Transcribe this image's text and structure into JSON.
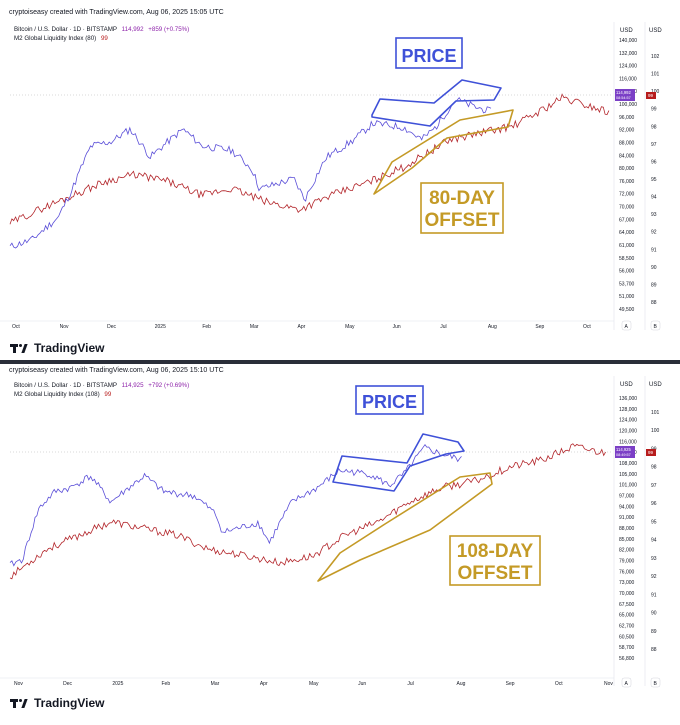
{
  "panels": [
    {
      "header": "cryptoiseasy created with TradingView.com, Aug 06, 2025 15:05 UTC",
      "legend_price": "Bitcoin / U.S. Dollar · 1D · BITSTAMP",
      "legend_price_value": "114,992",
      "legend_price_change": "+859 (+0.75%)",
      "legend_m2": "M2 Global Liquidity Index (80)",
      "legend_m2_value": "99",
      "annotation_price": "PRICE",
      "annotation_offset_1": "80-DAY",
      "annotation_offset_2": "OFFSET",
      "logo": "TradingView"
    },
    {
      "header": "cryptoiseasy created with TradingView.com, Aug 06, 2025 15:10 UTC",
      "legend_price": "Bitcoin / U.S. Dollar · 1D · BITSTAMP",
      "legend_price_value": "114,925",
      "legend_price_change": "+792 (+0.69%)",
      "legend_m2": "M2 Global Liquidity Index (108)",
      "legend_m2_value": "99",
      "annotation_price": "PRICE",
      "annotation_offset_1": "108-DAY",
      "annotation_offset_2": "OFFSET",
      "logo": "TradingView"
    }
  ],
  "colors": {
    "price_line": "#5b4fd8",
    "m2_line": "#b3262b",
    "price_box": "#3f51d8",
    "offset_box": "#c49a26"
  },
  "chart_data": [
    {
      "type": "line",
      "title": "Bitcoin / U.S. Dollar · 1D · BITSTAMP vs M2 Global Liquidity Index (80)",
      "x_ticks": [
        "Oct",
        "Nov",
        "Dec",
        "2025",
        "Feb",
        "Mar",
        "Apr",
        "May",
        "Jun",
        "Jul",
        "Aug",
        "Sep",
        "Oct"
      ],
      "left_axis_label": "USD",
      "right_axis_label": "USD",
      "left_axis_ticks": [
        "140,000",
        "132,000",
        "124,000",
        "116,000",
        "108,000",
        "100,000",
        "96,000",
        "92,000",
        "88,000",
        "84,000",
        "80,000",
        "76,000",
        "72,000",
        "70,000",
        "67,000",
        "64,000",
        "61,000",
        "58,500",
        "56,000",
        "53,700",
        "51,000",
        "49,500"
      ],
      "right_axis_ticks": [
        "102",
        "101",
        "100",
        "99",
        "98",
        "97",
        "96",
        "95",
        "94",
        "93",
        "92",
        "91",
        "90",
        "89",
        "88"
      ],
      "price_label": "114,992",
      "price_countdown": "08:54:57",
      "m2_label": "99",
      "series": [
        {
          "name": "Bitcoin / U.S. Dollar",
          "x": [
            "2024-10-01",
            "2024-10-15",
            "2024-11-01",
            "2024-11-10",
            "2024-11-22",
            "2024-12-05",
            "2024-12-17",
            "2024-12-30",
            "2025-01-20",
            "2025-02-01",
            "2025-02-20",
            "2025-03-05",
            "2025-03-10",
            "2025-04-01",
            "2025-04-08",
            "2025-04-22",
            "2025-05-08",
            "2025-05-22",
            "2025-06-10",
            "2025-06-22",
            "2025-07-01",
            "2025-07-14",
            "2025-07-25",
            "2025-08-06"
          ],
          "values": [
            61000,
            63000,
            70000,
            80000,
            98000,
            100000,
            106000,
            93000,
            106000,
            98000,
            96000,
            88000,
            80000,
            84000,
            76000,
            93000,
            100000,
            109000,
            107000,
            101000,
            107000,
            122000,
            118000,
            114992
          ]
        },
        {
          "name": "M2 Global Liquidity Index (80)",
          "x": [
            "2024-10-01",
            "2024-10-20",
            "2024-11-10",
            "2024-12-01",
            "2024-12-20",
            "2025-01-10",
            "2025-02-01",
            "2025-02-20",
            "2025-03-15",
            "2025-04-05",
            "2025-04-25",
            "2025-05-20",
            "2025-06-10",
            "2025-06-25",
            "2025-07-10",
            "2025-07-30",
            "2025-08-20",
            "2025-09-05",
            "2025-09-20",
            "2025-10-05",
            "2025-10-20"
          ],
          "values": [
            91,
            92,
            93,
            94,
            94.5,
            94,
            93,
            93.5,
            92.5,
            92,
            93,
            94,
            95,
            96,
            97,
            97.5,
            98,
            99,
            100,
            99.5,
            99
          ]
        }
      ]
    },
    {
      "type": "line",
      "title": "Bitcoin / U.S. Dollar · 1D · BITSTAMP vs M2 Global Liquidity Index (108)",
      "x_ticks": [
        "Nov",
        "Dec",
        "2025",
        "Feb",
        "Mar",
        "Apr",
        "May",
        "Jun",
        "Jul",
        "Aug",
        "Sep",
        "Oct",
        "Nov"
      ],
      "left_axis_label": "USD",
      "right_axis_label": "USD",
      "left_axis_ticks": [
        "136,000",
        "128,000",
        "124,000",
        "120,000",
        "116,000",
        "112,000",
        "108,000",
        "105,000",
        "101,000",
        "97,000",
        "94,000",
        "91,000",
        "88,000",
        "85,000",
        "82,000",
        "79,000",
        "76,000",
        "73,000",
        "70,000",
        "67,500",
        "65,000",
        "62,700",
        "60,500",
        "58,700",
        "56,800"
      ],
      "right_axis_ticks": [
        "101",
        "100",
        "99",
        "98",
        "97",
        "96",
        "95",
        "94",
        "93",
        "92",
        "91",
        "90",
        "89",
        "88"
      ],
      "price_label": "114,925",
      "price_countdown": "08:49:57",
      "m2_label": "99",
      "series": [
        {
          "name": "Bitcoin / U.S. Dollar",
          "x": [
            "2024-10-28",
            "2024-11-05",
            "2024-11-15",
            "2024-11-25",
            "2024-12-05",
            "2024-12-17",
            "2024-12-30",
            "2025-01-20",
            "2025-02-01",
            "2025-02-20",
            "2025-03-05",
            "2025-03-10",
            "2025-04-01",
            "2025-04-08",
            "2025-04-22",
            "2025-05-08",
            "2025-05-22",
            "2025-06-10",
            "2025-06-22",
            "2025-07-01",
            "2025-07-14",
            "2025-07-25",
            "2025-08-06"
          ],
          "values": [
            68000,
            70000,
            90000,
            98000,
            100000,
            106000,
            93000,
            106000,
            98000,
            96000,
            88000,
            80000,
            84000,
            76000,
            93000,
            100000,
            109000,
            107000,
            101000,
            107000,
            122000,
            118000,
            114925
          ]
        },
        {
          "name": "M2 Global Liquidity Index (108)",
          "x": [
            "2024-10-28",
            "2024-11-20",
            "2024-12-10",
            "2024-12-30",
            "2025-01-20",
            "2025-02-10",
            "2025-03-01",
            "2025-03-25",
            "2025-04-15",
            "2025-05-05",
            "2025-05-25",
            "2025-06-15",
            "2025-07-05",
            "2025-07-25",
            "2025-08-15",
            "2025-09-05",
            "2025-09-25",
            "2025-10-15",
            "2025-11-05"
          ],
          "values": [
            90,
            92,
            93,
            94,
            93.5,
            93,
            92,
            91.5,
            91,
            91.5,
            93,
            94,
            95.5,
            96.5,
            97,
            98,
            98.5,
            99.5,
            99
          ]
        }
      ]
    }
  ]
}
